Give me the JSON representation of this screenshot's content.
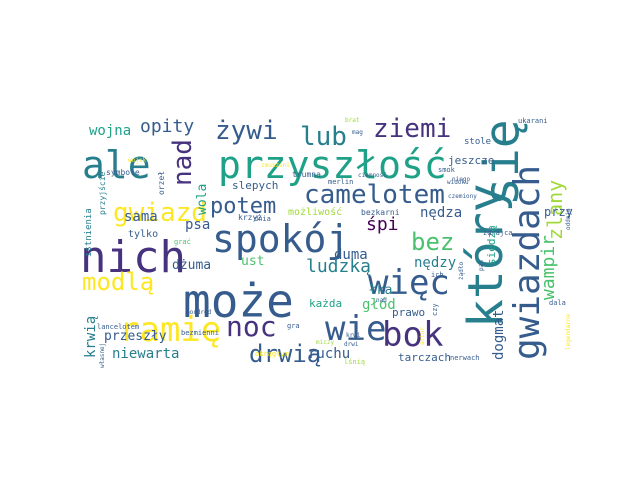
{
  "palette": {
    "dark_purple": "#46327e",
    "navy": "#365c8d",
    "blue": "#277f8e",
    "teal": "#1fa187",
    "green": "#4ac16d",
    "lime": "#a0da39",
    "yellow": "#fde725",
    "purple": "#440154"
  },
  "words": [
    {
      "text": "nich",
      "color": "#46327e"
    },
    {
      "text": "może",
      "color": "#365c8d"
    },
    {
      "text": "który",
      "color": "#277f8e"
    },
    {
      "text": "się",
      "color": "#277f8e"
    },
    {
      "text": "przyszłość",
      "color": "#1fa187"
    },
    {
      "text": "ale",
      "color": "#277f8e"
    },
    {
      "text": "spokój",
      "color": "#365c8d"
    },
    {
      "text": "ramię",
      "color": "#fde725"
    },
    {
      "text": "gwiazdach",
      "color": "#365c8d"
    },
    {
      "text": "wie",
      "color": "#365c8d"
    },
    {
      "text": "więc",
      "color": "#365c8d"
    },
    {
      "text": "bok",
      "color": "#46327e"
    },
    {
      "text": "noc",
      "color": "#46327e"
    },
    {
      "text": "camelotem",
      "color": "#365c8d"
    },
    {
      "text": "gwiazd",
      "color": "#fde725"
    },
    {
      "text": "ziemi",
      "color": "#46327e"
    },
    {
      "text": "lub",
      "color": "#277f8e"
    },
    {
      "text": "żywi",
      "color": "#365c8d"
    },
    {
      "text": "nad",
      "color": "#46327e"
    },
    {
      "text": "modlą",
      "color": "#fde725"
    },
    {
      "text": "drwią",
      "color": "#365c8d"
    },
    {
      "text": "bez",
      "color": "#4ac16d"
    },
    {
      "text": "potem",
      "color": "#365c8d"
    },
    {
      "text": "opity",
      "color": "#365c8d"
    },
    {
      "text": "wampir",
      "color": "#4ac16d"
    },
    {
      "text": "zlany",
      "color": "#a0da39"
    },
    {
      "text": "ludzką",
      "color": "#277f8e"
    },
    {
      "text": "śpi",
      "color": "#440154"
    },
    {
      "text": "dogmat",
      "color": "#365c8d"
    },
    {
      "text": "duma",
      "color": "#365c8d"
    },
    {
      "text": "nędza",
      "color": "#365c8d"
    },
    {
      "text": "nędzy",
      "color": "#277f8e"
    },
    {
      "text": "wojna",
      "color": "#1fa187"
    },
    {
      "text": "sama",
      "color": "#365c8d"
    },
    {
      "text": "wola",
      "color": "#1fa187"
    },
    {
      "text": "psa",
      "color": "#365c8d"
    },
    {
      "text": "dżuma",
      "color": "#365c8d"
    },
    {
      "text": "ust",
      "color": "#4ac16d"
    },
    {
      "text": "przeszły",
      "color": "#365c8d"
    },
    {
      "text": "krwią",
      "color": "#277f8e"
    },
    {
      "text": "niewarta",
      "color": "#277f8e"
    },
    {
      "text": "ruchu",
      "color": "#365c8d"
    },
    {
      "text": "głód",
      "color": "#4ac16d"
    },
    {
      "text": "łka",
      "color": "#277f8e"
    },
    {
      "text": "prawo",
      "color": "#365c8d"
    },
    {
      "text": "każda",
      "color": "#1fa187"
    },
    {
      "text": "tarczach",
      "color": "#365c8d"
    },
    {
      "text": "przy",
      "color": "#365c8d"
    },
    {
      "text": "siedzą",
      "color": "#1fa187"
    },
    {
      "text": "jeszcze",
      "color": "#365c8d"
    },
    {
      "text": "stole",
      "color": "#365c8d"
    },
    {
      "text": "slepych",
      "color": "#365c8d"
    },
    {
      "text": "możliwość",
      "color": "#a0da39"
    },
    {
      "text": "bezkarni",
      "color": "#365c8d"
    },
    {
      "text": "tylko",
      "color": "#365c8d"
    },
    {
      "text": "istnienia",
      "color": "#277f8e"
    },
    {
      "text": "symbole",
      "color": "#365c8d"
    },
    {
      "text": "trumna",
      "color": "#365c8d"
    },
    {
      "text": "ukarani",
      "color": "#365c8d"
    },
    {
      "text": "merlin",
      "color": "#365c8d"
    },
    {
      "text": "ciemność",
      "color": "#365c8d"
    },
    {
      "text": "krzyż",
      "color": "#365c8d"
    },
    {
      "text": "dnia",
      "color": "#365c8d"
    },
    {
      "text": "grać",
      "color": "#4ac16d"
    },
    {
      "text": "orzeł",
      "color": "#365c8d"
    },
    {
      "text": "przyjście",
      "color": "#277f8e"
    },
    {
      "text": "lancelotem",
      "color": "#365c8d"
    },
    {
      "text": "własnej",
      "color": "#365c8d"
    },
    {
      "text": "bezmienni",
      "color": "#365c8d"
    },
    {
      "text": "okrągłym",
      "color": "#fde725"
    },
    {
      "text": "lśnią",
      "color": "#a0da39"
    },
    {
      "text": "nerwach",
      "color": "#365c8d"
    },
    {
      "text": "legendarne",
      "color": "#fde725"
    },
    {
      "text": "dala",
      "color": "#365c8d"
    },
    {
      "text": "zdrajca",
      "color": "#365c8d"
    },
    {
      "text": "widoku",
      "color": "#365c8d"
    },
    {
      "text": "smok",
      "color": "#365c8d"
    },
    {
      "text": "niego",
      "color": "#365c8d"
    },
    {
      "text": "czemiony",
      "color": "#365c8d"
    },
    {
      "text": "brat",
      "color": "#a0da39"
    },
    {
      "text": "mag",
      "color": "#365c8d"
    },
    {
      "text": "nad",
      "color": "#365c8d"
    },
    {
      "text": "gra",
      "color": "#365c8d"
    },
    {
      "text": "krwi",
      "color": "#365c8d"
    },
    {
      "text": "mordred",
      "color": "#365c8d"
    },
    {
      "text": "ich",
      "color": "#365c8d"
    },
    {
      "text": "czy",
      "color": "#365c8d"
    },
    {
      "text": "pan",
      "color": "#365c8d"
    },
    {
      "text": "żądło",
      "color": "#365c8d"
    },
    {
      "text": "oddają",
      "color": "#365c8d"
    },
    {
      "text": "artur",
      "color": "#fde725"
    },
    {
      "text": "wojsk",
      "color": "#fde725"
    },
    {
      "text": "zmuszeni",
      "color": "#fde725"
    },
    {
      "text": "miczy",
      "color": "#a0da39"
    },
    {
      "text": "drwi",
      "color": "#365c8d"
    }
  ]
}
